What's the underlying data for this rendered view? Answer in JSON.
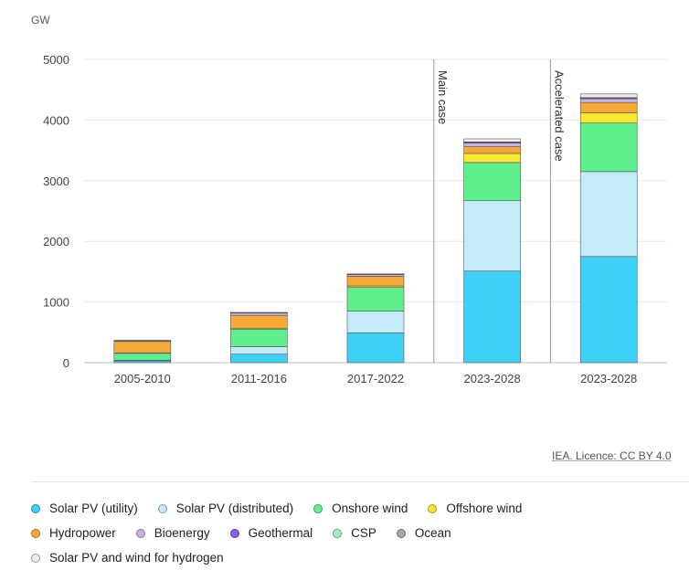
{
  "chart_data": {
    "type": "bar",
    "stacked": true,
    "unit": "GW",
    "ylim": [
      0,
      5000
    ],
    "yticks": [
      0,
      1000,
      2000,
      3000,
      4000,
      5000
    ],
    "categories": [
      "2005-2010",
      "2011-2016",
      "2017-2022",
      "2023-2028",
      "2023-2028"
    ],
    "annotations": [
      "Main case",
      "Accelerated case"
    ],
    "series": [
      {
        "name": "Solar PV (utility)",
        "color": "#3fd0f5",
        "values": [
          30,
          140,
          490,
          1510,
          1750
        ]
      },
      {
        "name": "Solar PV (distributed)",
        "color": "#c4ecf8",
        "values": [
          10,
          125,
          360,
          1160,
          1400
        ]
      },
      {
        "name": "Onshore wind",
        "color": "#5fef8e",
        "values": [
          115,
          290,
          390,
          630,
          800
        ]
      },
      {
        "name": "Offshore wind",
        "color": "#f9e733",
        "values": [
          5,
          5,
          25,
          150,
          170
        ]
      },
      {
        "name": "Hydropower",
        "color": "#f7a937",
        "values": [
          190,
          220,
          160,
          110,
          170
        ]
      },
      {
        "name": "Bioenergy",
        "color": "#c7b3ec",
        "values": [
          10,
          40,
          30,
          60,
          60
        ]
      },
      {
        "name": "Geothermal",
        "color": "#8f5ee8",
        "values": [
          3,
          3,
          3,
          10,
          10
        ]
      },
      {
        "name": "CSP",
        "color": "#9ef0c0",
        "values": [
          3,
          3,
          3,
          5,
          5
        ]
      },
      {
        "name": "Ocean",
        "color": "#a8a8a8",
        "values": [
          2,
          2,
          2,
          5,
          5
        ]
      },
      {
        "name": "Solar PV and wind for hydrogen",
        "color": "#ececec",
        "values": [
          0,
          0,
          0,
          50,
          60
        ]
      }
    ]
  },
  "credit": "IEA. Licence: CC BY 4.0"
}
